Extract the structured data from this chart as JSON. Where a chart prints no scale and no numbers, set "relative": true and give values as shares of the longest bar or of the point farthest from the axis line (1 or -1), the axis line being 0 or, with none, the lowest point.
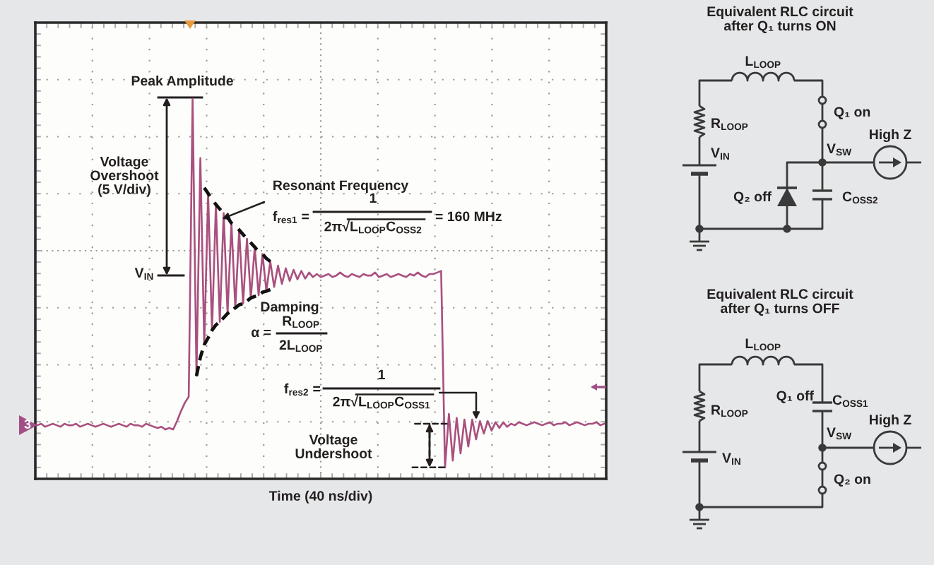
{
  "chart_data": [
    {
      "type": "line",
      "xlabel": "Time (40 ns/div)",
      "relative": true,
      "grid": true,
      "categories": [
        null,
        null,
        null,
        null,
        null,
        null,
        null,
        null,
        null,
        null,
        null,
        null,
        null,
        null,
        null,
        null,
        null,
        null,
        null,
        null,
        null,
        null,
        null,
        null,
        null,
        null,
        null,
        null,
        null,
        null,
        null,
        null,
        null,
        null,
        null,
        null,
        null,
        null,
        null,
        null,
        null,
        null,
        null,
        null,
        null,
        null,
        null,
        null,
        null,
        null,
        null,
        null,
        null,
        null,
        null,
        null,
        null,
        null,
        null,
        null,
        null,
        null,
        null,
        null,
        null,
        null,
        null,
        null,
        null,
        null,
        null,
        null,
        null,
        null,
        null,
        null,
        null,
        null,
        null,
        null,
        null,
        null,
        null,
        null,
        null,
        null,
        null,
        null,
        null,
        null,
        null,
        null,
        null,
        null,
        null,
        null,
        null,
        null,
        null,
        null,
        null,
        null,
        null,
        null,
        null,
        null,
        null,
        null,
        null,
        null,
        null,
        null,
        null,
        null,
        null,
        null,
        null,
        null,
        null,
        null,
        null,
        null,
        null,
        null,
        null,
        null,
        null,
        null,
        null,
        null,
        null,
        null,
        null,
        null,
        null,
        null,
        null,
        null,
        null,
        null,
        null,
        null,
        null,
        null,
        null,
        null,
        null
      ],
      "series": [
        {
          "color": "#a9507f",
          "values": [
            0.141,
            0.145,
            0.137,
            0.141,
            0.145,
            0.141,
            0.137,
            0.145,
            0.141,
            0.141,
            0.145,
            0.137,
            0.141,
            0.145,
            0.141,
            0.137,
            0.141,
            0.145,
            0.141,
            0.137,
            0.141,
            0.145,
            0.141,
            0.137,
            0.145,
            0.141,
            0.141,
            0.137,
            0.145,
            0.141,
            0.137,
            0.134,
            0.137,
            0.13,
            0.134,
            0.13,
            0.152,
            0.178,
            0.2,
            0.216,
            1,
            0.271,
            0.844,
            0.353,
            0.751,
            0.391,
            0.722,
            0.413,
            0.699,
            0.435,
            0.673,
            0.45,
            0.655,
            0.461,
            0.632,
            0.476,
            0.61,
            0.483,
            0.592,
            0.494,
            0.572,
            0.505,
            0.561,
            0.513,
            0.554,
            0.521,
            0.55,
            0.525,
            0.547,
            0.527,
            0.543,
            0.531,
            0.539,
            0.531,
            0.535,
            0.539,
            0.531,
            0.535,
            0.543,
            0.535,
            0.531,
            0.539,
            0.535,
            0.531,
            0.539,
            0.535,
            0.535,
            0.543,
            0.531,
            0.535,
            0.539,
            0.531,
            0.535,
            0.539,
            0.535,
            0.531,
            0.539,
            0.535,
            0.543,
            0.535,
            0.531,
            0.539,
            0.539,
            0.543,
            0.547,
            0.03,
            0.171,
            0.048,
            0.16,
            0.067,
            0.156,
            0.085,
            0.156,
            0.104,
            0.152,
            0.119,
            0.152,
            0.127,
            0.149,
            0.134,
            0.149,
            0.137,
            0.145,
            0.141,
            0.149,
            0.145,
            0.141,
            0.145,
            0.149,
            0.145,
            0.141,
            0.145,
            0.149,
            0.141,
            0.145,
            0.145,
            0.149,
            0.141,
            0.145,
            0.149,
            0.145,
            0.141,
            0.145,
            0.145,
            0.149,
            0.141,
            0.145
          ]
        },
        {
          "color": "#111111",
          "line_style": "dashed",
          "values": [
            null,
            null,
            null,
            null,
            null,
            null,
            null,
            null,
            null,
            null,
            null,
            null,
            null,
            null,
            null,
            null,
            null,
            null,
            null,
            null,
            null,
            null,
            null,
            null,
            null,
            null,
            null,
            null,
            null,
            null,
            null,
            null,
            null,
            null,
            null,
            null,
            null,
            null,
            null,
            null,
            null,
            null,
            null,
            0.766,
            0.751,
            0.736,
            0.722,
            0.71,
            0.699,
            0.688,
            0.673,
            0.665,
            0.655,
            0.643,
            0.632,
            0.621,
            0.61,
            0.598,
            0.592,
            0.58,
            0.572,
            null,
            null,
            null,
            null,
            null,
            null,
            null,
            null,
            null,
            null,
            null,
            null,
            null,
            null,
            null,
            null,
            null,
            null,
            null,
            null,
            null,
            null,
            null,
            null,
            null,
            null,
            null,
            null,
            null,
            null,
            null,
            null,
            null,
            null,
            null,
            null,
            null,
            null,
            null,
            null,
            null,
            null,
            null,
            null,
            null,
            null,
            null,
            null,
            null,
            null,
            null,
            null,
            null,
            null,
            null,
            null,
            null,
            null,
            null,
            null,
            null,
            null,
            null,
            null,
            null,
            null,
            null,
            null,
            null,
            null,
            null,
            null,
            null,
            null,
            null,
            null,
            null,
            null,
            null,
            null,
            null,
            null,
            null,
            null,
            null,
            null
          ]
        },
        {
          "color": "#111111",
          "line_style": "dashed",
          "values": [
            null,
            null,
            null,
            null,
            null,
            null,
            null,
            null,
            null,
            null,
            null,
            null,
            null,
            null,
            null,
            null,
            null,
            null,
            null,
            null,
            null,
            null,
            null,
            null,
            null,
            null,
            null,
            null,
            null,
            null,
            null,
            null,
            null,
            null,
            null,
            null,
            null,
            null,
            null,
            null,
            null,
            0.271,
            0.32,
            0.353,
            0.371,
            0.391,
            0.405,
            0.413,
            0.424,
            0.435,
            0.442,
            0.45,
            0.458,
            0.461,
            0.468,
            0.476,
            0.48,
            0.483,
            0.491,
            0.494,
            0.498,
            null,
            null,
            null,
            null,
            null,
            null,
            null,
            null,
            null,
            null,
            null,
            null,
            null,
            null,
            null,
            null,
            null,
            null,
            null,
            null,
            null,
            null,
            null,
            null,
            null,
            null,
            null,
            null,
            null,
            null,
            null,
            null,
            null,
            null,
            null,
            null,
            null,
            null,
            null,
            null,
            null,
            null,
            null,
            null,
            null,
            null,
            null,
            null,
            null,
            null,
            null,
            null,
            null,
            null,
            null,
            null,
            null,
            null,
            null,
            null,
            null,
            null,
            null,
            null,
            null,
            null,
            null,
            null,
            null,
            null,
            null,
            null,
            null,
            null,
            null,
            null,
            null,
            null,
            null,
            null,
            null,
            null,
            null,
            null,
            null,
            null
          ]
        }
      ],
      "annotations": [
        "Peak Amplitude",
        "Voltage\nOvershoot\n(5 V/div)",
        "V$_{IN}$",
        "Resonant Frequency",
        "f$_{res1}$ =",
        "1",
        "2π√L$_{LOOP}$C$_{OSS2}$",
        "= 160 MHz",
        "Damping",
        "α =",
        "R$_{LOOP}$",
        "2L$_{LOOP}$",
        "f$_{res2}$ =",
        "1",
        "2π√L$_{LOOP}$C$_{OSS1}$",
        "Voltage\nUndershoot",
        "3"
      ]
    },
    {
      "type": "other",
      "title": "Equivalent RLC circuit\nafter Q₁ turns ON",
      "annotations": [
        "L$_{LOOP}$",
        "R$_{LOOP}$",
        "Q₁ on",
        "V$_{IN}$",
        "V$_{SW}$",
        "High Z",
        "Q₂ off",
        "C$_{OSS2}$"
      ]
    },
    {
      "type": "other",
      "title": "Equivalent RLC circuit\nafter Q₁ turns OFF",
      "annotations": [
        "L$_{LOOP}$",
        "Q₁ off",
        "C$_{OSS1}$",
        "R$_{LOOP}$",
        "V$_{SW}$",
        "High Z",
        "V$_{IN}$",
        "Q₂ on"
      ]
    }
  ]
}
